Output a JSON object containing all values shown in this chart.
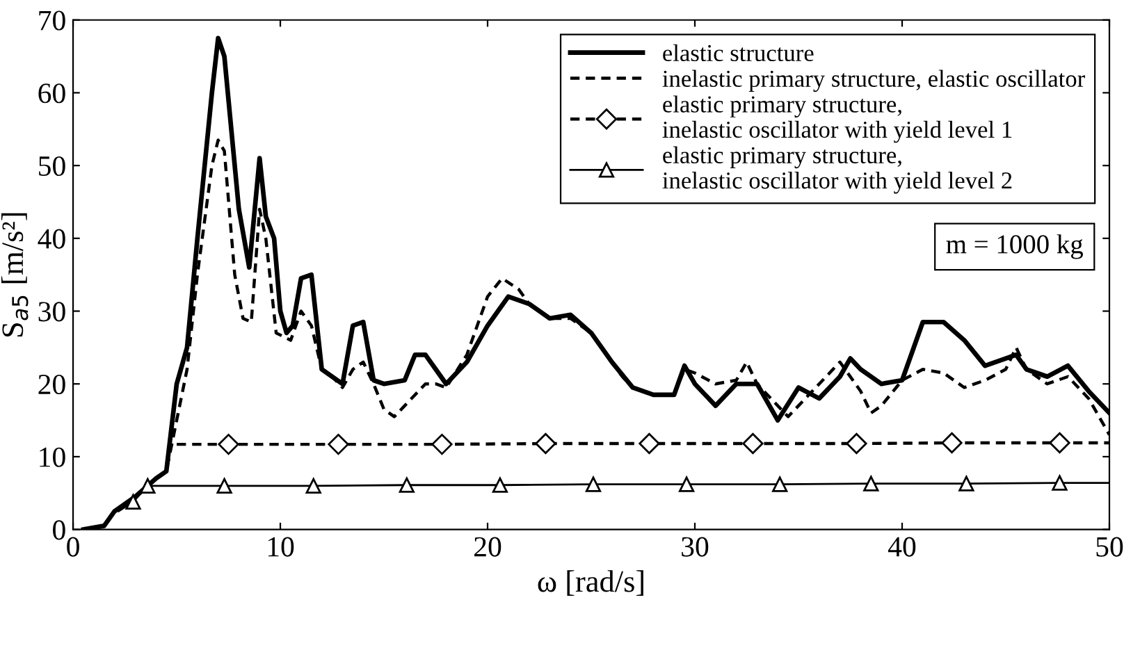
{
  "chart_data": {
    "type": "line",
    "xlabel": "ω [rad/s]",
    "ylabel": "S$_{a5}$ [m/s²]",
    "xlim": [
      0,
      50
    ],
    "ylim": [
      0,
      70
    ],
    "xticks": [
      0,
      10,
      20,
      30,
      40,
      50
    ],
    "yticks": [
      0,
      10,
      20,
      30,
      40,
      50,
      60,
      70
    ],
    "grid": false,
    "legend": "top right",
    "annotations": [
      "m = 1000 kg"
    ],
    "series": [
      {
        "name": "elastic structure",
        "color": "#000000",
        "line_style": "solid",
        "marker": "none",
        "x": [
          0.5,
          1.5,
          2,
          3,
          4,
          4.5,
          5,
          5.5,
          6,
          6.7,
          7,
          7.3,
          8,
          8.5,
          8.8,
          9,
          9.3,
          9.7,
          10,
          10.3,
          10.6,
          11,
          11.5,
          12,
          12.5,
          13,
          13.5,
          14,
          14.5,
          15,
          16,
          16.5,
          17,
          17.5,
          18,
          19,
          20,
          21,
          22,
          23,
          24,
          25,
          26,
          27,
          28,
          29,
          29.5,
          30,
          31,
          32,
          33,
          34,
          35,
          36,
          37,
          37.5,
          38,
          39,
          40,
          41,
          42,
          43,
          44,
          45,
          45.5,
          46,
          46.5,
          47,
          48,
          49,
          50
        ],
        "values": [
          0,
          0.5,
          2.5,
          4.5,
          7,
          8,
          20,
          25,
          40,
          60,
          67.5,
          65,
          44,
          36,
          45,
          51,
          43,
          40,
          30,
          27,
          28,
          34.5,
          35,
          22,
          21,
          20,
          28,
          28.5,
          20.5,
          20,
          20.5,
          24,
          24,
          22,
          20,
          23,
          28,
          32,
          31,
          29,
          29.5,
          27,
          23,
          19.5,
          18.5,
          18.5,
          22.5,
          20,
          17,
          20,
          20,
          15,
          19.5,
          18,
          21,
          23.5,
          22,
          20,
          20.5,
          28.5,
          28.5,
          26,
          22.5,
          23.5,
          24,
          22,
          21.5,
          21,
          22.5,
          19,
          16
        ]
      },
      {
        "name": "inelastic primary structure, elastic oscillator",
        "color": "#000000",
        "line_style": "dashed",
        "marker": "none",
        "x": [
          0.5,
          1.5,
          2,
          3,
          4,
          4.5,
          5,
          5.5,
          6,
          6.7,
          7,
          7.3,
          7.8,
          8.2,
          8.6,
          9,
          9.3,
          9.8,
          10.5,
          11,
          11.5,
          12,
          12.5,
          13,
          13.5,
          14,
          14.5,
          15,
          15.5,
          16,
          17,
          17.5,
          18,
          19,
          20,
          20.7,
          21.5,
          22,
          23,
          24,
          25,
          26,
          26.5,
          27,
          28,
          29,
          29.5,
          30,
          31,
          32,
          32.5,
          33,
          34,
          34.5,
          35,
          36,
          37,
          38,
          38.5,
          39,
          40,
          41,
          42,
          43,
          44,
          45,
          45.5,
          46,
          47,
          48,
          49,
          50
        ],
        "values": [
          0,
          0.5,
          2.5,
          4.5,
          7,
          8,
          15,
          22,
          35,
          50,
          53.5,
          52,
          35,
          29,
          28.5,
          44,
          40,
          27,
          26,
          30,
          28,
          22,
          21,
          19.5,
          22,
          23,
          20,
          16.5,
          15.5,
          17,
          20,
          20,
          19.5,
          24,
          32,
          34.5,
          33,
          31,
          29,
          29,
          27,
          23,
          21,
          19.5,
          18.5,
          18.5,
          22,
          21.5,
          20,
          20.5,
          23,
          20,
          17,
          15.5,
          17,
          20,
          23,
          19,
          16,
          17,
          20.5,
          22,
          21.5,
          19.5,
          20.5,
          22,
          25,
          22,
          20,
          21,
          18,
          13
        ]
      },
      {
        "name": "elastic primary structure,\ninelastic oscillator with yield level 1",
        "color": "#000000",
        "line_style": "dashed",
        "marker": "diamond",
        "x": [
          5,
          7.5,
          12.8,
          17.8,
          22.8,
          27.8,
          32.8,
          37.8,
          42.4,
          47.6,
          50
        ],
        "values": [
          11.7,
          11.7,
          11.7,
          11.7,
          11.8,
          11.8,
          11.8,
          11.8,
          11.9,
          11.9,
          11.9
        ]
      },
      {
        "name": "elastic primary structure,\ninelastic oscillator with yield level 2",
        "color": "#000000",
        "line_style": "solid",
        "marker": "triangle",
        "x": [
          2.2,
          2.9,
          3.6,
          7.3,
          11.6,
          16.1,
          20.6,
          25.1,
          29.6,
          34.1,
          38.5,
          43.1,
          47.6,
          50
        ],
        "values": [
          2.5,
          3.8,
          6,
          6,
          6,
          6.1,
          6.1,
          6.2,
          6.2,
          6.2,
          6.3,
          6.3,
          6.4,
          6.4
        ]
      }
    ]
  }
}
